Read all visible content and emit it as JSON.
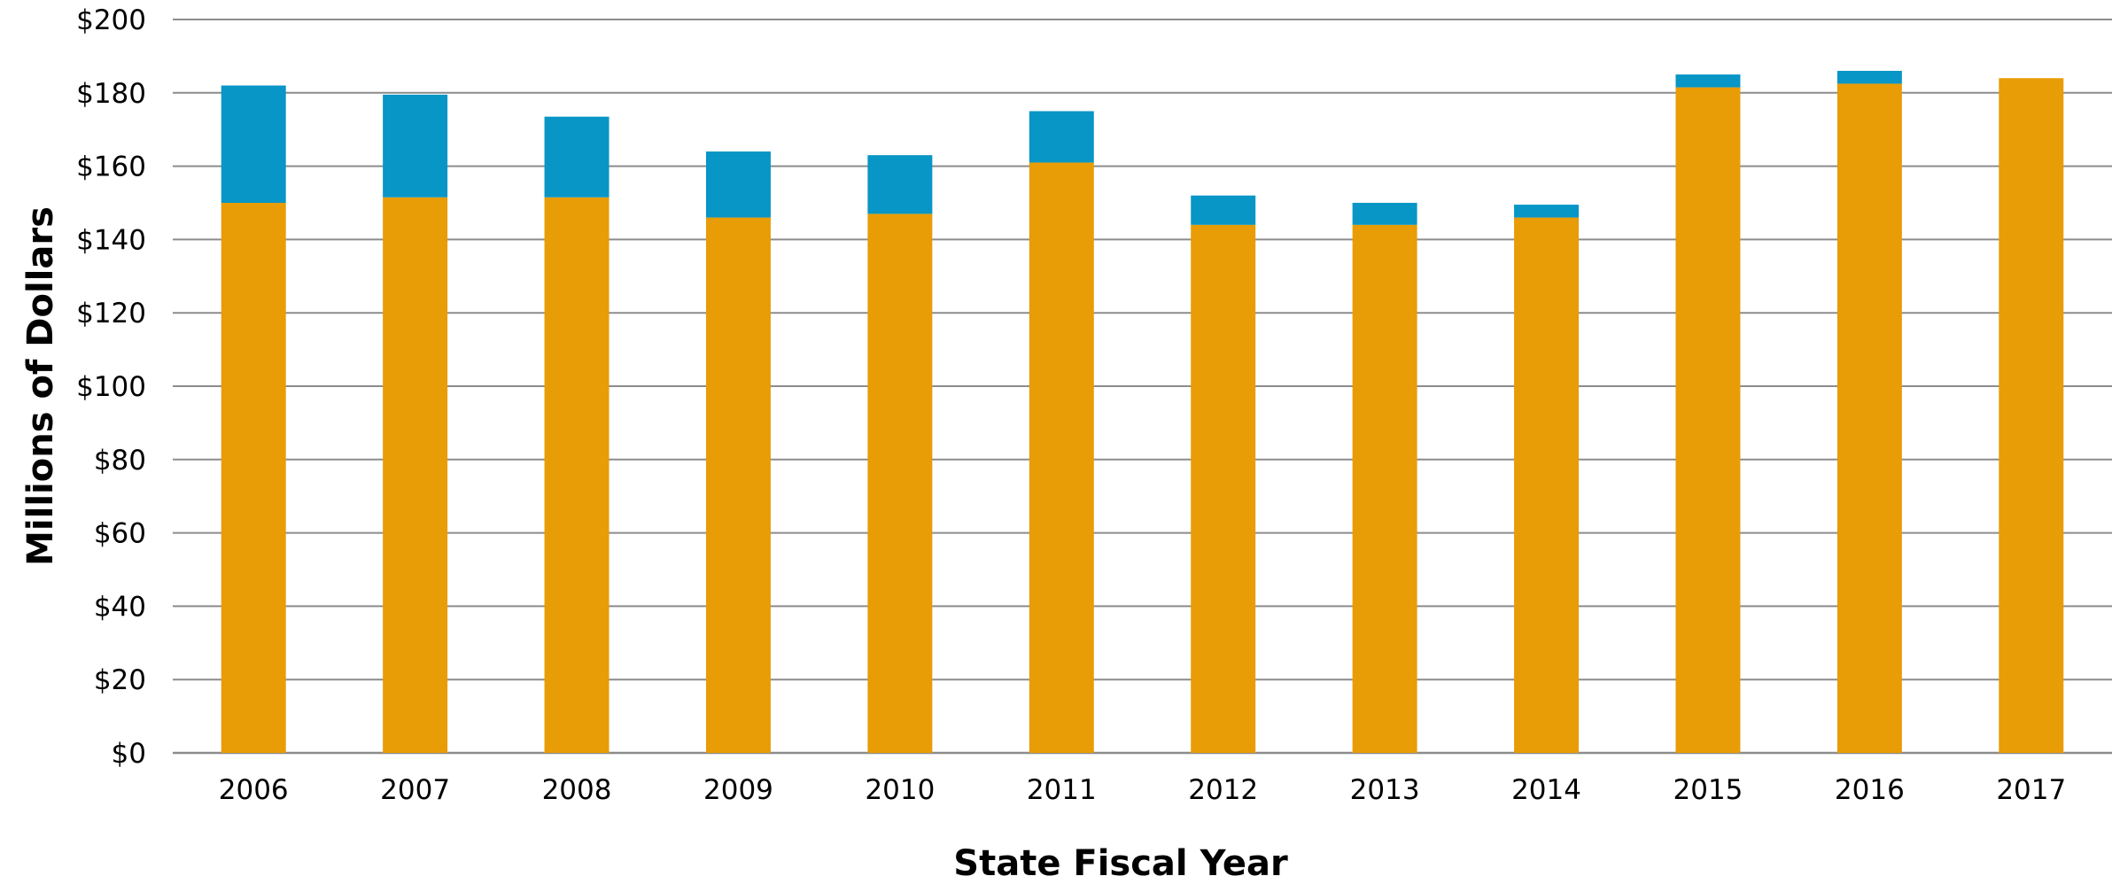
{
  "chart_data": {
    "type": "bar",
    "stacked": true,
    "categories": [
      "2006",
      "2007",
      "2008",
      "2009",
      "2010",
      "2011",
      "2012",
      "2013",
      "2014",
      "2015",
      "2016",
      "2017"
    ],
    "series": [
      {
        "values": [
          150,
          151.5,
          151.5,
          146,
          147,
          161,
          144,
          144,
          146,
          181.5,
          182.5,
          184
        ],
        "color": "#e89c06"
      },
      {
        "values": [
          32,
          28,
          22,
          18,
          16,
          14,
          8,
          6,
          3.5,
          3.5,
          3.5,
          0
        ],
        "color": "#0796c6"
      }
    ],
    "title": "",
    "xlabel": "State Fiscal Year",
    "ylabel": "Millions of Dollars",
    "ylim": [
      0,
      200
    ],
    "yticks": [
      0,
      20,
      40,
      60,
      80,
      100,
      120,
      140,
      160,
      180,
      200
    ],
    "ytick_labels": [
      "$0",
      "$20",
      "$40",
      "$60",
      "$80",
      "$100",
      "$120",
      "$140",
      "$160",
      "$180",
      "$200"
    ],
    "grid": true,
    "legend": "none"
  }
}
